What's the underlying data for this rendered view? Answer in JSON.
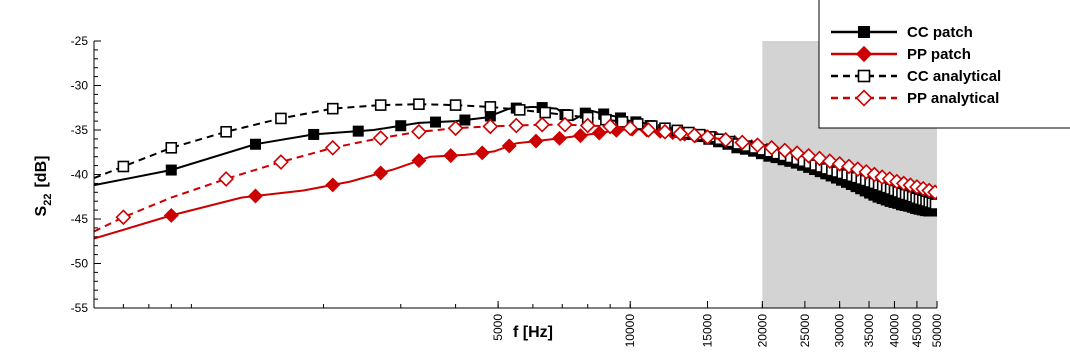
{
  "chart_data": {
    "type": "line",
    "title": "",
    "xlabel": "f [Hz]",
    "ylabel_main": "S",
    "ylabel_sub": "22",
    "ylabel_unit": "[dB]",
    "x_scale": "log",
    "xlim": [
      600,
      50000
    ],
    "ylim": [
      -55,
      -25
    ],
    "y_ticks": [
      -55,
      -50,
      -45,
      -40,
      -35,
      -30,
      -25
    ],
    "x_ticks": [
      5000,
      10000,
      15000,
      20000,
      25000,
      30000,
      35000,
      40000,
      45000,
      50000
    ],
    "x_tick_labels": [
      "5000",
      "10000",
      "15000",
      "20000",
      "25000",
      "30000",
      "35000",
      "40000",
      "45000",
      "50000"
    ],
    "shaded_region": {
      "x": [
        20000,
        50000
      ],
      "color": "#d3d3d3"
    },
    "grid": false,
    "legend_position": "top-right",
    "series": [
      {
        "name": "CC patch",
        "color": "#000000",
        "line_style": "solid",
        "marker": "square-filled",
        "x": [
          600,
          900,
          1400,
          1900,
          2600,
          3300,
          4000,
          4700,
          5300,
          6000,
          6800,
          7400,
          8100,
          8700,
          9300,
          10000,
          10700,
          11500,
          12500,
          13500,
          14500,
          15500,
          16500,
          17500,
          18500,
          19500,
          20500,
          21500,
          22500,
          23500,
          24500,
          25500,
          26500,
          27500,
          28500,
          29500,
          30500,
          31500,
          32500,
          33500,
          34500,
          35500,
          36500,
          37500,
          38500,
          39500,
          40500,
          41500,
          42500,
          43500,
          44500,
          45500,
          46500,
          47500,
          48500,
          49500,
          50000
        ],
        "y": [
          -41.2,
          -39.5,
          -36.6,
          -35.5,
          -35.0,
          -34.2,
          -34.0,
          -33.6,
          -32.6,
          -32.4,
          -32.6,
          -33.9,
          -32.8,
          -33.2,
          -33.5,
          -34.0,
          -34.2,
          -34.8,
          -35.2,
          -35.5,
          -35.8,
          -36.2,
          -36.5,
          -37.0,
          -37.2,
          -37.5,
          -37.9,
          -38.1,
          -38.4,
          -38.6,
          -38.9,
          -39.2,
          -39.5,
          -39.8,
          -40.1,
          -40.4,
          -40.7,
          -41.0,
          -41.3,
          -41.6,
          -41.9,
          -42.2,
          -42.5,
          -42.7,
          -42.9,
          -43.1,
          -43.2,
          -43.4,
          -43.5,
          -43.6,
          -43.8,
          -43.9,
          -44.0,
          -44.1,
          -44.1,
          -44.1,
          -44.1
        ],
        "marker_x": [
          900,
          1400,
          1900,
          2400,
          3000,
          3600,
          4200,
          4800,
          5500,
          6300,
          7100,
          7900,
          8700,
          9500,
          10300,
          11100,
          11900,
          12700,
          13500,
          14300,
          15100,
          15900,
          16700,
          17500,
          18300,
          19100,
          19900,
          20700,
          21500,
          22300,
          23100,
          23900,
          24700,
          25500,
          26300,
          27100,
          27900,
          28700,
          29500,
          30300,
          31100,
          31900,
          32700,
          33500,
          34300,
          35100,
          35900,
          36700,
          37500,
          38300,
          39100,
          39900,
          40700,
          41500,
          42300,
          43100,
          43900,
          44700,
          45500,
          46300,
          47100,
          47900,
          48700,
          49500
        ]
      },
      {
        "name": "PP patch",
        "color": "#cc0000",
        "line_style": "solid",
        "marker": "diamond-filled",
        "x": [
          600,
          900,
          1300,
          1800,
          2300,
          2900,
          3500,
          4200,
          4900,
          5500,
          6200,
          7000,
          7800,
          8600,
          9400,
          10200,
          11000,
          12000,
          13000,
          14000,
          15000,
          16000,
          17000,
          18000,
          19000,
          20000,
          21000,
          22000,
          23000,
          24000,
          25000,
          26000,
          27000,
          28000,
          29000,
          30000,
          31000,
          32000,
          33000,
          34000,
          35000,
          36000,
          37000,
          38000,
          39000,
          40000,
          41000,
          42000,
          43000,
          44000,
          45000,
          46000,
          47000,
          48000,
          49000,
          50000
        ],
        "y": [
          -47.2,
          -44.6,
          -42.6,
          -41.8,
          -40.8,
          -39.4,
          -38.0,
          -37.8,
          -37.4,
          -36.5,
          -36.2,
          -35.9,
          -35.6,
          -35.3,
          -35.0,
          -34.9,
          -35.0,
          -35.2,
          -35.4,
          -35.6,
          -35.8,
          -36.0,
          -36.3,
          -36.6,
          -36.9,
          -37.1,
          -37.4,
          -37.6,
          -37.8,
          -38.0,
          -38.3,
          -38.5,
          -38.8,
          -39.0,
          -39.2,
          -39.4,
          -39.6,
          -39.8,
          -40.0,
          -40.2,
          -40.4,
          -40.6,
          -40.8,
          -41.0,
          -41.1,
          -41.2,
          -41.4,
          -41.5,
          -41.6,
          -41.7,
          -41.8,
          -41.9,
          -42.0,
          -42.0,
          -42.1,
          -42.1
        ],
        "marker_x": [
          900,
          1400,
          2100,
          2700,
          3300,
          3900,
          4600,
          5300,
          6100,
          6900,
          7700,
          8500,
          9300,
          10100,
          10900,
          11700,
          12500,
          13300,
          14100,
          14900,
          15700,
          16500,
          17300,
          18100,
          18900,
          19700,
          20500,
          21300,
          22100,
          22900,
          23700,
          24500,
          25300,
          26100,
          26900,
          27700,
          28500,
          29300,
          30100,
          30900,
          31700,
          32500,
          33300,
          34100,
          34900,
          35700,
          36500,
          37300,
          38100,
          38900,
          39700,
          40500,
          41300,
          42100,
          42900,
          43700,
          44500,
          45300,
          46100,
          46900,
          47700,
          48500,
          49300,
          50000
        ]
      },
      {
        "name": "CC analytical",
        "color": "#000000",
        "line_style": "dashed",
        "marker": "square-open",
        "x": [
          600,
          700,
          900,
          1200,
          1600,
          2100,
          2700,
          3300,
          4000,
          4800,
          5500,
          6300,
          7100,
          8000,
          9000,
          10000,
          11000,
          12000,
          13000,
          14000,
          15000,
          16500,
          18000,
          19500,
          21000,
          22500,
          24000,
          25500,
          27000,
          28500,
          30000,
          31500,
          33000,
          34500,
          36000,
          37500,
          39000,
          40500,
          42000,
          43500,
          45000,
          46500,
          48000,
          49500,
          50000
        ],
        "y": [
          -40.4,
          -39.1,
          -37.0,
          -35.2,
          -33.7,
          -32.6,
          -32.2,
          -32.1,
          -32.2,
          -32.4,
          -32.7,
          -33.0,
          -33.3,
          -33.6,
          -33.9,
          -34.2,
          -34.5,
          -34.8,
          -35.1,
          -35.4,
          -35.7,
          -36.2,
          -36.7,
          -37.1,
          -37.5,
          -37.9,
          -38.3,
          -38.7,
          -39.1,
          -39.5,
          -39.8,
          -40.1,
          -40.4,
          -40.7,
          -41.0,
          -41.3,
          -41.6,
          -41.9,
          -42.2,
          -42.4,
          -42.7,
          -42.9,
          -43.1,
          -43.3,
          -43.4
        ],
        "marker_x": [
          700,
          900,
          1200,
          1600,
          2100,
          2700,
          3300,
          4000,
          4800,
          5600,
          6400,
          7200,
          8000,
          8800,
          9600,
          10400,
          11200,
          12000,
          12800,
          13600,
          14400,
          15200,
          16000,
          16800,
          17600,
          18400,
          19200,
          20000,
          20800,
          21600,
          22400,
          23200,
          24000,
          24800,
          25600,
          26400,
          27200,
          28000,
          28800,
          29600,
          30400,
          31200,
          32000,
          32800,
          33600,
          34400,
          35200,
          36000,
          36800,
          37600,
          38400,
          39200,
          40000,
          40800,
          41600,
          42400,
          43200,
          44000,
          44800,
          45600,
          46400,
          47200,
          48000,
          48800,
          49600
        ]
      },
      {
        "name": "PP analytical",
        "color": "#cc0000",
        "line_style": "dashed",
        "marker": "diamond-open",
        "x": [
          600,
          700,
          900,
          1200,
          1600,
          2100,
          2700,
          3300,
          4000,
          4800,
          5500,
          6300,
          7100,
          8000,
          9000,
          10000,
          11000,
          12000,
          13000,
          14000,
          15000,
          16500,
          18000,
          19500,
          21000,
          22500,
          24000,
          25500,
          27000,
          28500,
          30000,
          31500,
          33000,
          34500,
          36000,
          37500,
          39000,
          40500,
          42000,
          43500,
          45000,
          46500,
          48000,
          49500,
          50000
        ],
        "y": [
          -46.4,
          -44.8,
          -42.6,
          -40.5,
          -38.6,
          -37.0,
          -35.9,
          -35.2,
          -34.8,
          -34.6,
          -34.5,
          -34.4,
          -34.4,
          -34.5,
          -34.6,
          -34.8,
          -35.0,
          -35.2,
          -35.4,
          -35.6,
          -35.8,
          -36.1,
          -36.4,
          -36.7,
          -37.0,
          -37.3,
          -37.6,
          -37.9,
          -38.2,
          -38.5,
          -38.8,
          -39.1,
          -39.4,
          -39.7,
          -40.0,
          -40.3,
          -40.5,
          -40.8,
          -41.0,
          -41.2,
          -41.4,
          -41.6,
          -41.8,
          -42.0,
          -42.0
        ],
        "marker_x": [
          700,
          1200,
          1600,
          2100,
          2700,
          3300,
          4000,
          4800,
          5500,
          6300,
          7100,
          8000,
          9000,
          10000,
          11000,
          12000,
          13000,
          14000,
          15000,
          16500,
          18000,
          19500,
          21000,
          22500,
          24000,
          25500,
          27000,
          28500,
          30000,
          31500,
          33000,
          34500,
          36000,
          37500,
          39000,
          40500,
          42000,
          43500,
          45000,
          46500,
          48000,
          49500
        ]
      }
    ]
  }
}
